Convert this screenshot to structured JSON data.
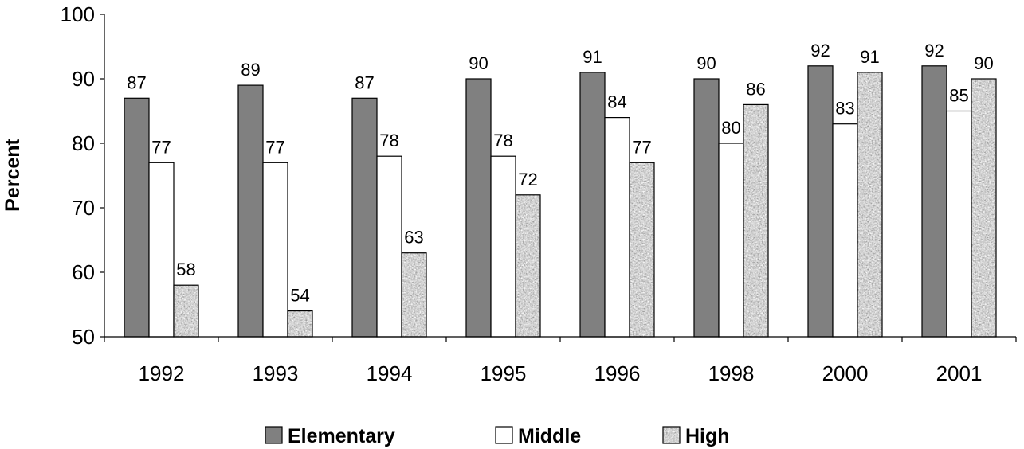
{
  "chart_data": {
    "type": "bar",
    "ylabel": "Percent",
    "xlabel": "",
    "ylim": [
      50,
      100
    ],
    "yticks": [
      50,
      60,
      70,
      80,
      90,
      100
    ],
    "categories": [
      "1992",
      "1993",
      "1994",
      "1995",
      "1996",
      "1998",
      "2000",
      "2001"
    ],
    "series": [
      {
        "name": "Elementary",
        "values": [
          87,
          89,
          87,
          90,
          91,
          90,
          92,
          92
        ],
        "color": "#808080",
        "pattern": "solid"
      },
      {
        "name": "Middle",
        "values": [
          77,
          77,
          78,
          78,
          84,
          80,
          83,
          85
        ],
        "color": "#ffffff",
        "pattern": "solid"
      },
      {
        "name": "High",
        "values": [
          58,
          54,
          63,
          72,
          77,
          86,
          91,
          90
        ],
        "color": "#a6a6a6",
        "pattern": "granite"
      }
    ],
    "legend_position": "bottom",
    "grid": false
  }
}
